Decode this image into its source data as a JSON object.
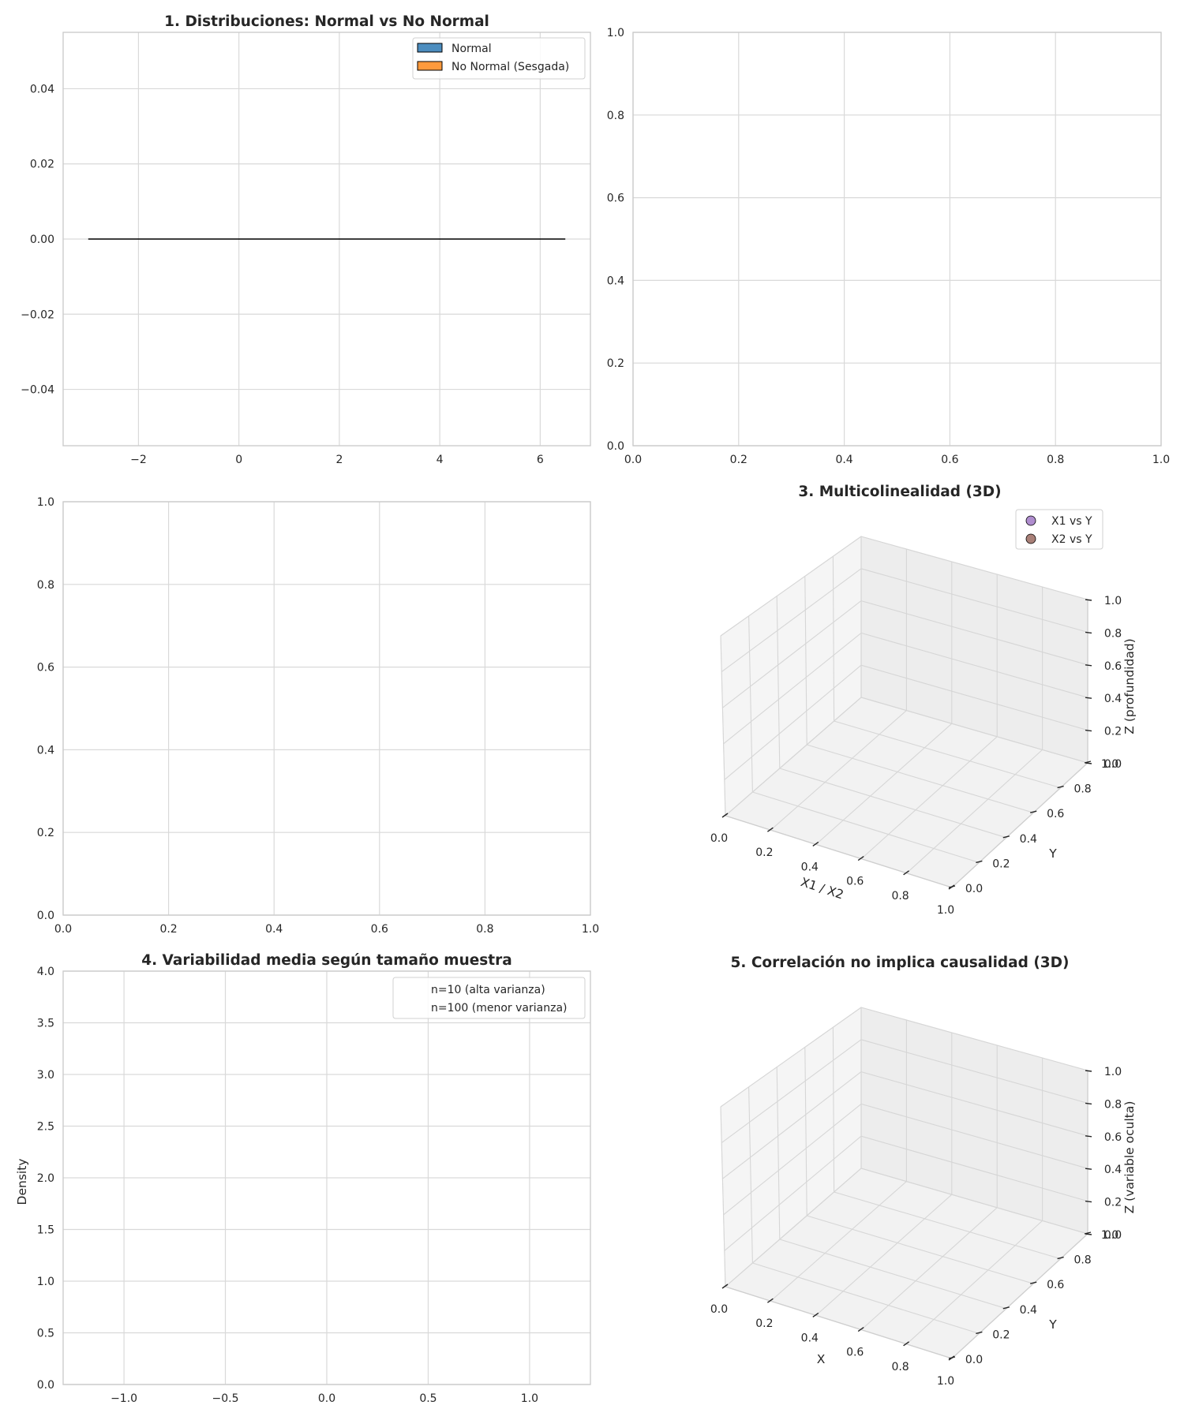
{
  "chart_data": [
    {
      "type": "bar",
      "title": "1. Distribuciones: Normal vs No Normal",
      "xlabel": "",
      "ylabel": "",
      "xlim": [
        -3.5,
        7.0
      ],
      "ylim": [
        -0.055,
        0.055
      ],
      "xticks": [
        -2,
        0,
        2,
        4,
        6
      ],
      "yticks": [
        -0.04,
        -0.02,
        0.0,
        0.02,
        0.04
      ],
      "xtick_labels": [
        "−2",
        "0",
        "2",
        "4",
        "6"
      ],
      "ytick_labels": [
        "−0.04",
        "−0.02",
        "0.00",
        "0.02",
        "0.04"
      ],
      "grid": true,
      "legend_position": "top-right",
      "series": [
        {
          "name": "Normal",
          "color": "#4c8dbf",
          "values": []
        },
        {
          "name": "No Normal (Sesgada)",
          "color": "#ff9a3c",
          "values": []
        }
      ],
      "baseline_line": {
        "x": [
          -3.0,
          6.5
        ],
        "y": [
          0.0,
          0.0
        ],
        "color": "#000000"
      }
    },
    {
      "type": "scatter",
      "title": "",
      "xlim": [
        0,
        1
      ],
      "ylim": [
        0,
        1
      ],
      "xticks": [
        0.0,
        0.2,
        0.4,
        0.6,
        0.8,
        1.0
      ],
      "yticks": [
        0.0,
        0.2,
        0.4,
        0.6,
        0.8,
        1.0
      ],
      "xtick_labels": [
        "0.0",
        "0.2",
        "0.4",
        "0.6",
        "0.8",
        "1.0"
      ],
      "ytick_labels": [
        "0.0",
        "0.2",
        "0.4",
        "0.6",
        "0.8",
        "1.0"
      ],
      "grid": true,
      "series": []
    },
    {
      "type": "scatter",
      "title": "",
      "xlim": [
        0,
        1
      ],
      "ylim": [
        0,
        1
      ],
      "xticks": [
        0.0,
        0.2,
        0.4,
        0.6,
        0.8,
        1.0
      ],
      "yticks": [
        0.0,
        0.2,
        0.4,
        0.6,
        0.8,
        1.0
      ],
      "xtick_labels": [
        "0.0",
        "0.2",
        "0.4",
        "0.6",
        "0.8",
        "1.0"
      ],
      "ytick_labels": [
        "0.0",
        "0.2",
        "0.4",
        "0.6",
        "0.8",
        "1.0"
      ],
      "grid": true,
      "series": []
    },
    {
      "type": "scatter",
      "projection": "3d",
      "title": "3. Multicolinealidad (3D)",
      "xlabel": "X1 / X2",
      "ylabel": "Y",
      "zlabel": "Z (profundidad)",
      "xlim": [
        0,
        1
      ],
      "ylim": [
        0,
        1
      ],
      "zlim": [
        0,
        1
      ],
      "xtick_labels": [
        "0.0",
        "0.2",
        "0.4",
        "0.6",
        "0.8",
        "1.0"
      ],
      "ytick_labels": [
        "0.0",
        "0.2",
        "0.4",
        "0.6",
        "0.8",
        "1.0"
      ],
      "ztick_labels": [
        "0.0",
        "0.2",
        "0.4",
        "0.6",
        "0.8",
        "1.0"
      ],
      "grid": true,
      "legend_position": "top-right",
      "series": [
        {
          "name": "X1 vs Y",
          "color": "#9467bd",
          "values": []
        },
        {
          "name": "X2 vs Y",
          "color": "#8c564b",
          "values": []
        }
      ]
    },
    {
      "type": "area",
      "title": "4. Variabilidad media según tamaño muestra",
      "xlabel": "",
      "ylabel": "Density",
      "xlim": [
        -1.3,
        1.3
      ],
      "ylim": [
        0,
        4.0
      ],
      "xticks": [
        -1.0,
        -0.5,
        0.0,
        0.5,
        1.0
      ],
      "yticks": [
        0.0,
        0.5,
        1.0,
        1.5,
        2.0,
        2.5,
        3.0,
        3.5,
        4.0
      ],
      "xtick_labels": [
        "−1.0",
        "−0.5",
        "0.0",
        "0.5",
        "1.0"
      ],
      "ytick_labels": [
        "0.0",
        "0.5",
        "1.0",
        "1.5",
        "2.0",
        "2.5",
        "3.0",
        "3.5",
        "4.0"
      ],
      "grid": true,
      "legend_position": "top-right",
      "series": [
        {
          "name": "n=10 (alta varianza)",
          "values": []
        },
        {
          "name": "n=100 (menor varianza)",
          "values": []
        }
      ]
    },
    {
      "type": "scatter",
      "projection": "3d",
      "title": "5. Correlación no implica causalidad (3D)",
      "xlabel": "X",
      "ylabel": "Y",
      "zlabel": "Z (variable oculta)",
      "xlim": [
        0,
        1
      ],
      "ylim": [
        0,
        1
      ],
      "zlim": [
        0,
        1
      ],
      "xtick_labels": [
        "0.0",
        "0.2",
        "0.4",
        "0.6",
        "0.8",
        "1.0"
      ],
      "ytick_labels": [
        "0.0",
        "0.2",
        "0.4",
        "0.6",
        "0.8",
        "1.0"
      ],
      "ztick_labels": [
        "0.0",
        "0.2",
        "0.4",
        "0.6",
        "0.8",
        "1.0"
      ],
      "grid": true,
      "series": []
    }
  ]
}
